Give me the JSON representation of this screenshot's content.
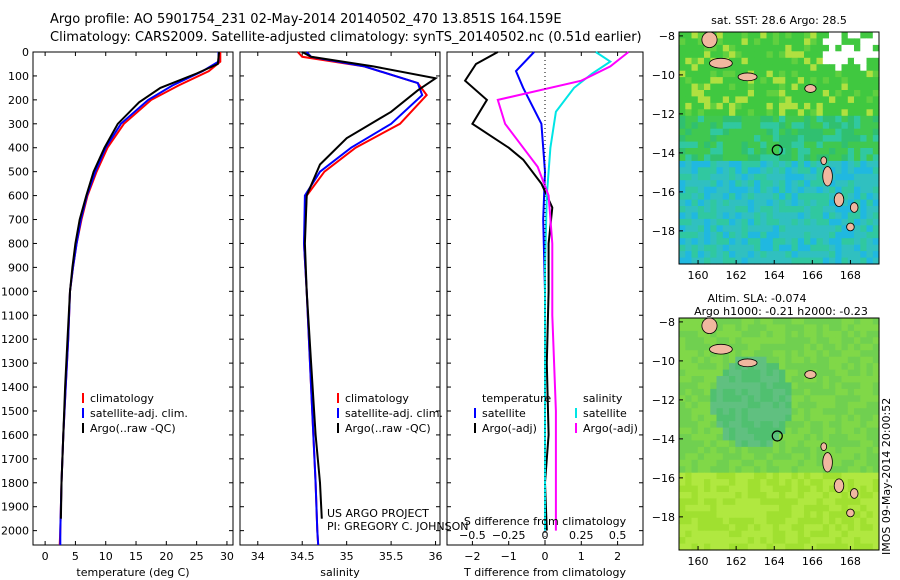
{
  "header": {
    "line1": "Argo profile: AO 5901754_231 02-May-2014 20140502_470 13.851S 164.159E",
    "line2": "Climatology: CARS2009. Satellite-adjusted climatology: synTS_20140502.nc (0.51d earlier)"
  },
  "credits": {
    "project": "US ARGO PROJECT",
    "pi": "PI: GREGORY C. JOHNSON"
  },
  "side_label": "IMOS 09-May-2014 20:00:52",
  "colors": {
    "climatology": "#ff0000",
    "satellite": "#0000ff",
    "argo": "#000000",
    "sal_satellite": "#00e5e5",
    "sal_argo": "#ff00ff",
    "land": "#f0b8a0"
  },
  "chart_data": [
    {
      "id": "temperature",
      "type": "line",
      "xlabel": "temperature (deg C)",
      "xticks": [
        0,
        5,
        10,
        15,
        20,
        25,
        30
      ],
      "xlim": [
        -2,
        31
      ],
      "ylim": [
        2060,
        0
      ],
      "yticks": [
        0,
        100,
        200,
        300,
        400,
        500,
        600,
        700,
        800,
        900,
        1000,
        1100,
        1200,
        1300,
        1400,
        1500,
        1600,
        1700,
        1800,
        1900,
        2000
      ],
      "legend": [
        "climatology",
        "satellite-adj. clim.",
        "Argo(..raw -QC)"
      ],
      "series": [
        {
          "name": "climatology",
          "color": "#ff0000",
          "points": [
            [
              28.9,
              0
            ],
            [
              28.9,
              40
            ],
            [
              27.0,
              80
            ],
            [
              22.0,
              140
            ],
            [
              17.5,
              200
            ],
            [
              13.0,
              300
            ],
            [
              10.3,
              400
            ],
            [
              8.5,
              500
            ],
            [
              7.0,
              600
            ],
            [
              6.0,
              700
            ],
            [
              5.2,
              800
            ],
            [
              4.6,
              900
            ],
            [
              4.1,
              1000
            ],
            [
              3.8,
              1200
            ],
            [
              3.4,
              1400
            ],
            [
              3.0,
              1600
            ],
            [
              2.7,
              1800
            ],
            [
              2.5,
              2000
            ],
            [
              2.4,
              2060
            ]
          ]
        },
        {
          "name": "satellite-adj. clim.",
          "color": "#0000ff",
          "points": [
            [
              28.6,
              0
            ],
            [
              28.6,
              40
            ],
            [
              26.0,
              80
            ],
            [
              21.0,
              140
            ],
            [
              17.0,
              200
            ],
            [
              12.5,
              300
            ],
            [
              10.0,
              400
            ],
            [
              8.3,
              500
            ],
            [
              6.9,
              600
            ],
            [
              5.9,
              700
            ],
            [
              5.2,
              800
            ],
            [
              4.6,
              900
            ],
            [
              4.1,
              1000
            ],
            [
              3.8,
              1200
            ],
            [
              3.4,
              1400
            ],
            [
              3.0,
              1600
            ],
            [
              2.7,
              1800
            ],
            [
              2.5,
              2000
            ],
            [
              2.5,
              2060
            ]
          ]
        },
        {
          "name": "Argo(..raw -QC)",
          "color": "#000000",
          "points": [
            [
              28.7,
              0
            ],
            [
              28.5,
              50
            ],
            [
              25.0,
              90
            ],
            [
              19.0,
              150
            ],
            [
              15.5,
              210
            ],
            [
              12.0,
              300
            ],
            [
              9.8,
              400
            ],
            [
              8.0,
              500
            ],
            [
              6.8,
              600
            ],
            [
              5.7,
              700
            ],
            [
              5.0,
              800
            ],
            [
              4.5,
              900
            ],
            [
              4.1,
              1000
            ],
            [
              3.7,
              1200
            ],
            [
              3.3,
              1400
            ],
            [
              3.0,
              1600
            ],
            [
              2.7,
              1800
            ],
            [
              2.6,
              1950
            ]
          ]
        }
      ]
    },
    {
      "id": "salinity",
      "type": "line",
      "xlabel": "salinity",
      "xticks": [
        34,
        34.5,
        35,
        35.5,
        36
      ],
      "xlim": [
        33.8,
        36.05
      ],
      "ylim": [
        2060,
        0
      ],
      "legend": [
        "climatology",
        "satellite-adj. clim.",
        "Argo(..raw -QC)"
      ],
      "series": [
        {
          "name": "climatology",
          "color": "#ff0000",
          "points": [
            [
              34.45,
              0
            ],
            [
              34.5,
              20
            ],
            [
              35.2,
              60
            ],
            [
              35.8,
              130
            ],
            [
              35.9,
              180
            ],
            [
              35.6,
              300
            ],
            [
              35.1,
              400
            ],
            [
              34.75,
              500
            ],
            [
              34.55,
              600
            ],
            [
              34.52,
              800
            ],
            [
              34.55,
              1000
            ],
            [
              34.6,
              1400
            ],
            [
              34.65,
              1800
            ],
            [
              34.67,
              2000
            ],
            [
              34.68,
              2060
            ]
          ]
        },
        {
          "name": "satellite-adj. clim.",
          "color": "#0000ff",
          "points": [
            [
              34.55,
              0
            ],
            [
              34.6,
              20
            ],
            [
              35.2,
              60
            ],
            [
              35.8,
              130
            ],
            [
              35.85,
              180
            ],
            [
              35.5,
              300
            ],
            [
              35.05,
              400
            ],
            [
              34.7,
              500
            ],
            [
              34.53,
              600
            ],
            [
              34.52,
              800
            ],
            [
              34.55,
              1000
            ],
            [
              34.6,
              1400
            ],
            [
              34.65,
              1800
            ],
            [
              34.67,
              2000
            ],
            [
              34.68,
              2060
            ]
          ]
        },
        {
          "name": "Argo(..raw -QC)",
          "color": "#000000",
          "points": [
            [
              34.5,
              0
            ],
            [
              34.6,
              20
            ],
            [
              35.3,
              60
            ],
            [
              36.0,
              110
            ],
            [
              35.8,
              160
            ],
            [
              35.5,
              250
            ],
            [
              35.0,
              360
            ],
            [
              34.7,
              470
            ],
            [
              34.55,
              600
            ],
            [
              34.53,
              800
            ],
            [
              34.55,
              1000
            ],
            [
              34.6,
              1300
            ],
            [
              34.65,
              1600
            ],
            [
              34.7,
              1800
            ],
            [
              34.72,
              1950
            ]
          ]
        }
      ]
    },
    {
      "id": "difference",
      "type": "line",
      "xlabel": "T difference from climatology",
      "xlabel_top": "S difference from climatology",
      "xticks": [
        -2,
        -1,
        0,
        1,
        2
      ],
      "xticks_s": [
        "-0.5",
        "-0.25",
        "0",
        "0.25",
        "0.5"
      ],
      "xlim": [
        -2.7,
        2.7
      ],
      "ylim": [
        2060,
        0
      ],
      "legend_left": [
        "temperature",
        "satellite",
        "Argo(-adj)"
      ],
      "legend_right": [
        "salinity",
        "satellite",
        "Argo(-adj)"
      ],
      "series": [
        {
          "name": "temperature satellite",
          "color": "#0000ff",
          "points": [
            [
              -0.3,
              0
            ],
            [
              -0.8,
              80
            ],
            [
              -0.6,
              150
            ],
            [
              -0.1,
              300
            ],
            [
              0.0,
              500
            ],
            [
              -0.05,
              700
            ],
            [
              0.0,
              1000
            ],
            [
              0.0,
              1500
            ],
            [
              0.0,
              2000
            ]
          ]
        },
        {
          "name": "temperature Argo(-adj)",
          "color": "#000000",
          "points": [
            [
              -1.3,
              0
            ],
            [
              -1.9,
              50
            ],
            [
              -2.2,
              120
            ],
            [
              -1.6,
              200
            ],
            [
              -2.0,
              300
            ],
            [
              -1.5,
              350
            ],
            [
              -1.0,
              400
            ],
            [
              -0.6,
              450
            ],
            [
              -0.1,
              550
            ],
            [
              0.2,
              650
            ],
            [
              0.1,
              800
            ],
            [
              0.1,
              1000
            ],
            [
              0.05,
              1300
            ],
            [
              0.1,
              1600
            ],
            [
              0.0,
              1800
            ],
            [
              0.05,
              2000
            ]
          ]
        },
        {
          "name": "salinity satellite",
          "color": "#00e5e5",
          "points": [
            [
              1.4,
              0
            ],
            [
              1.8,
              40
            ],
            [
              1.3,
              90
            ],
            [
              0.8,
              150
            ],
            [
              0.3,
              250
            ],
            [
              0.15,
              400
            ],
            [
              0.05,
              600
            ],
            [
              0.0,
              900
            ],
            [
              0.0,
              1400
            ],
            [
              0.0,
              2000
            ]
          ]
        },
        {
          "name": "salinity Argo(-adj)",
          "color": "#ff00ff",
          "points": [
            [
              2.3,
              0
            ],
            [
              1.8,
              60
            ],
            [
              1.0,
              120
            ],
            [
              -1.3,
              200
            ],
            [
              -1.1,
              300
            ],
            [
              -0.8,
              360
            ],
            [
              -0.2,
              480
            ],
            [
              0.1,
              600
            ],
            [
              0.2,
              800
            ],
            [
              0.2,
              1100
            ],
            [
              0.3,
              1500
            ],
            [
              0.3,
              1800
            ],
            [
              0.3,
              2000
            ]
          ]
        }
      ]
    },
    {
      "id": "sst_map",
      "type": "heatmap",
      "title": "sat. SST: 28.6 Argo: 28.5",
      "xticks": [
        160,
        162,
        164,
        166,
        168
      ],
      "yticks": [
        -8,
        -10,
        -12,
        -14,
        -16,
        -18
      ],
      "xlim": [
        159,
        169.5
      ],
      "ylim": [
        -19.7,
        -7.8
      ],
      "marker": {
        "lon": 164.159,
        "lat": -13.851
      }
    },
    {
      "id": "sla_map",
      "type": "heatmap",
      "title": "Altim. SLA: -0.074",
      "subtitle": "Argo h1000: -0.21 h2000: -0.23",
      "xticks": [
        160,
        162,
        164,
        166,
        168
      ],
      "yticks": [
        -8,
        -10,
        -12,
        -14,
        -16,
        -18
      ],
      "xlim": [
        159,
        169.5
      ],
      "ylim": [
        -19.7,
        -7.8
      ],
      "marker": {
        "lon": 164.159,
        "lat": -13.851
      }
    }
  ]
}
